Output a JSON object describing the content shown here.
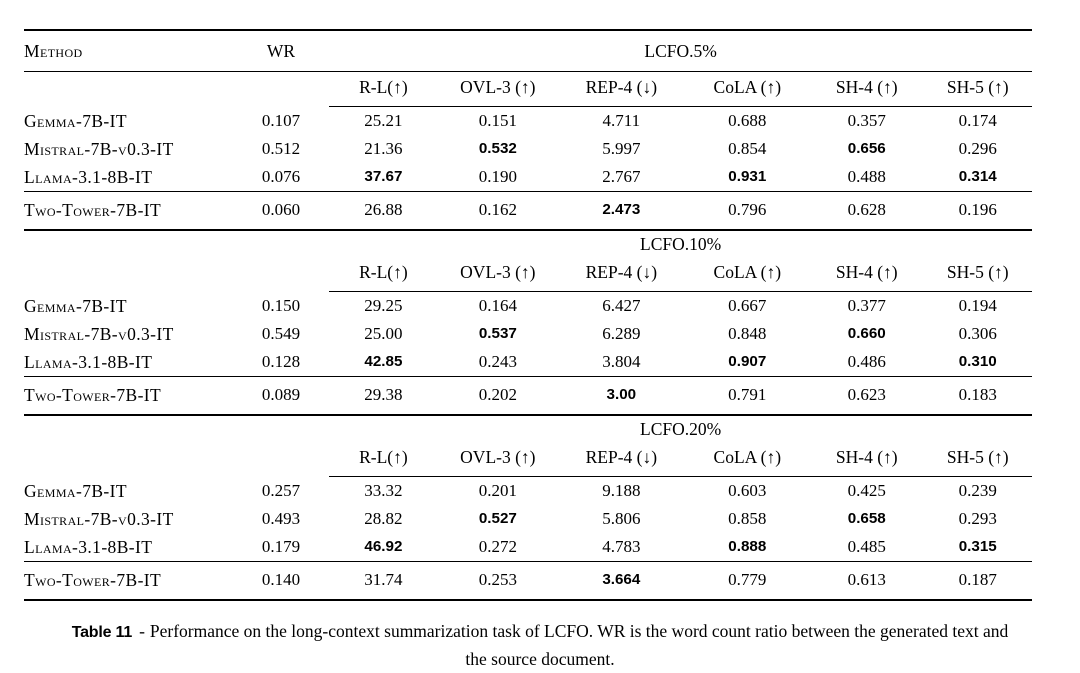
{
  "colors": {
    "text": "#000000",
    "background": "#ffffff",
    "rule": "#000000"
  },
  "table": {
    "method_header": "Method",
    "wr_header": "WR",
    "metric_headers": [
      "R-L(↑)",
      "OVL-3 (↑)",
      "REP-4 (↓)",
      "CoLA (↑)",
      "SH-4 (↑)",
      "SH-5 (↑)"
    ],
    "sections": [
      {
        "label": "LCFO.5%",
        "rows": [
          {
            "method": "Gemma-7B-IT",
            "wr": "0.107",
            "values": [
              "25.21",
              "0.151",
              "4.711",
              "0.688",
              "0.357",
              "0.174"
            ],
            "bold": []
          },
          {
            "method": "Mistral-7B-v0.3-IT",
            "wr": "0.512",
            "values": [
              "21.36",
              "0.532",
              "5.997",
              "0.854",
              "0.656",
              "0.296"
            ],
            "bold": [
              1,
              4
            ]
          },
          {
            "method": "Llama-3.1-8B-IT",
            "wr": "0.076",
            "values": [
              "37.67",
              "0.190",
              "2.767",
              "0.931",
              "0.488",
              "0.314"
            ],
            "bold": [
              0,
              3,
              5
            ]
          },
          {
            "method": "Two-Tower-7B-IT",
            "wr": "0.060",
            "values": [
              "26.88",
              "0.162",
              "2.473",
              "0.796",
              "0.628",
              "0.196"
            ],
            "bold": [
              2
            ],
            "separated": true
          }
        ]
      },
      {
        "label": "LCFO.10%",
        "rows": [
          {
            "method": "Gemma-7B-IT",
            "wr": "0.150",
            "values": [
              "29.25",
              "0.164",
              "6.427",
              "0.667",
              "0.377",
              "0.194"
            ],
            "bold": []
          },
          {
            "method": "Mistral-7B-v0.3-IT",
            "wr": "0.549",
            "values": [
              "25.00",
              "0.537",
              "6.289",
              "0.848",
              "0.660",
              "0.306"
            ],
            "bold": [
              1,
              4
            ]
          },
          {
            "method": "Llama-3.1-8B-IT",
            "wr": "0.128",
            "values": [
              "42.85",
              "0.243",
              "3.804",
              "0.907",
              "0.486",
              "0.310"
            ],
            "bold": [
              0,
              3,
              5
            ]
          },
          {
            "method": "Two-Tower-7B-IT",
            "wr": "0.089",
            "values": [
              "29.38",
              "0.202",
              "3.00",
              "0.791",
              "0.623",
              "0.183"
            ],
            "bold": [
              2
            ],
            "separated": true
          }
        ]
      },
      {
        "label": "LCFO.20%",
        "rows": [
          {
            "method": "Gemma-7B-IT",
            "wr": "0.257",
            "values": [
              "33.32",
              "0.201",
              "9.188",
              "0.603",
              "0.425",
              "0.239"
            ],
            "bold": []
          },
          {
            "method": "Mistral-7B-v0.3-IT",
            "wr": "0.493",
            "values": [
              "28.82",
              "0.527",
              "5.806",
              "0.858",
              "0.658",
              "0.293"
            ],
            "bold": [
              1,
              4
            ]
          },
          {
            "method": "Llama-3.1-8B-IT",
            "wr": "0.179",
            "values": [
              "46.92",
              "0.272",
              "4.783",
              "0.888",
              "0.485",
              "0.315"
            ],
            "bold": [
              0,
              3,
              5
            ]
          },
          {
            "method": "Two-Tower-7B-IT",
            "wr": "0.140",
            "values": [
              "31.74",
              "0.253",
              "3.664",
              "0.779",
              "0.613",
              "0.187"
            ],
            "bold": [
              2
            ],
            "separated": true
          }
        ]
      }
    ]
  },
  "caption": {
    "label": "Table 11",
    "separator": "-",
    "text": "Performance on the long-context summarization task of LCFO. WR is the word count ratio between the generated text and the source document."
  }
}
